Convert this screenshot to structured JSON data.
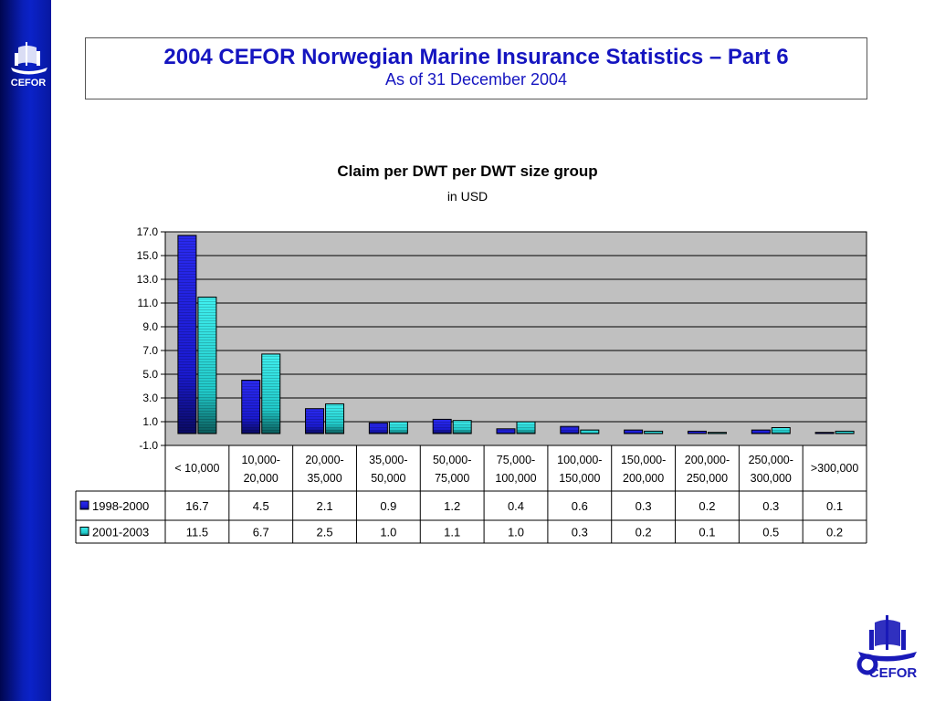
{
  "header": {
    "title": "2004 CEFOR Norwegian Marine Insurance Statistics – Part 6",
    "subtitle": "As of 31 December 2004"
  },
  "logo": {
    "text": "CEFOR"
  },
  "colors": {
    "sidebar": "#0b22c8",
    "title_text": "#1515c0",
    "series1": "#1a1ae0",
    "series2": "#22d8d8",
    "plot_bg": "#c0c0c0"
  },
  "chart_data": {
    "type": "bar",
    "title": "Claim per DWT per DWT size group",
    "subtitle": "in USD",
    "categories": [
      "< 10,000",
      "10,000-\n20,000",
      "20,000-\n35,000",
      "35,000-\n50,000",
      "50,000-\n75,000",
      "75,000-\n100,000",
      "100,000-\n150,000",
      "150,000-\n200,000",
      "200,000-\n250,000",
      "250,000-\n300,000",
      ">300,000"
    ],
    "series": [
      {
        "name": "1998-2000",
        "values": [
          16.7,
          4.5,
          2.1,
          0.9,
          1.2,
          0.4,
          0.6,
          0.3,
          0.2,
          0.3,
          0.1
        ],
        "labels": [
          "16.7",
          "4.5",
          "2.1",
          "0.9",
          "1.2",
          "0.4",
          "0.6",
          "0.3",
          "0.2",
          "0.3",
          "0.1"
        ]
      },
      {
        "name": "2001-2003",
        "values": [
          11.5,
          6.7,
          2.5,
          1.0,
          1.1,
          1.0,
          0.3,
          0.2,
          0.1,
          0.5,
          0.2
        ],
        "labels": [
          "11.5",
          "6.7",
          "2.5",
          "1.0",
          "1.1",
          "1.0",
          "0.3",
          "0.2",
          "0.1",
          "0.5",
          "0.2"
        ]
      }
    ],
    "ylim": [
      -1.0,
      17.0
    ],
    "yticks": [
      "17.0",
      "15.0",
      "13.0",
      "11.0",
      "9.0",
      "7.0",
      "5.0",
      "3.0",
      "1.0",
      "-1.0"
    ],
    "grid": true,
    "legend": "data-table"
  }
}
